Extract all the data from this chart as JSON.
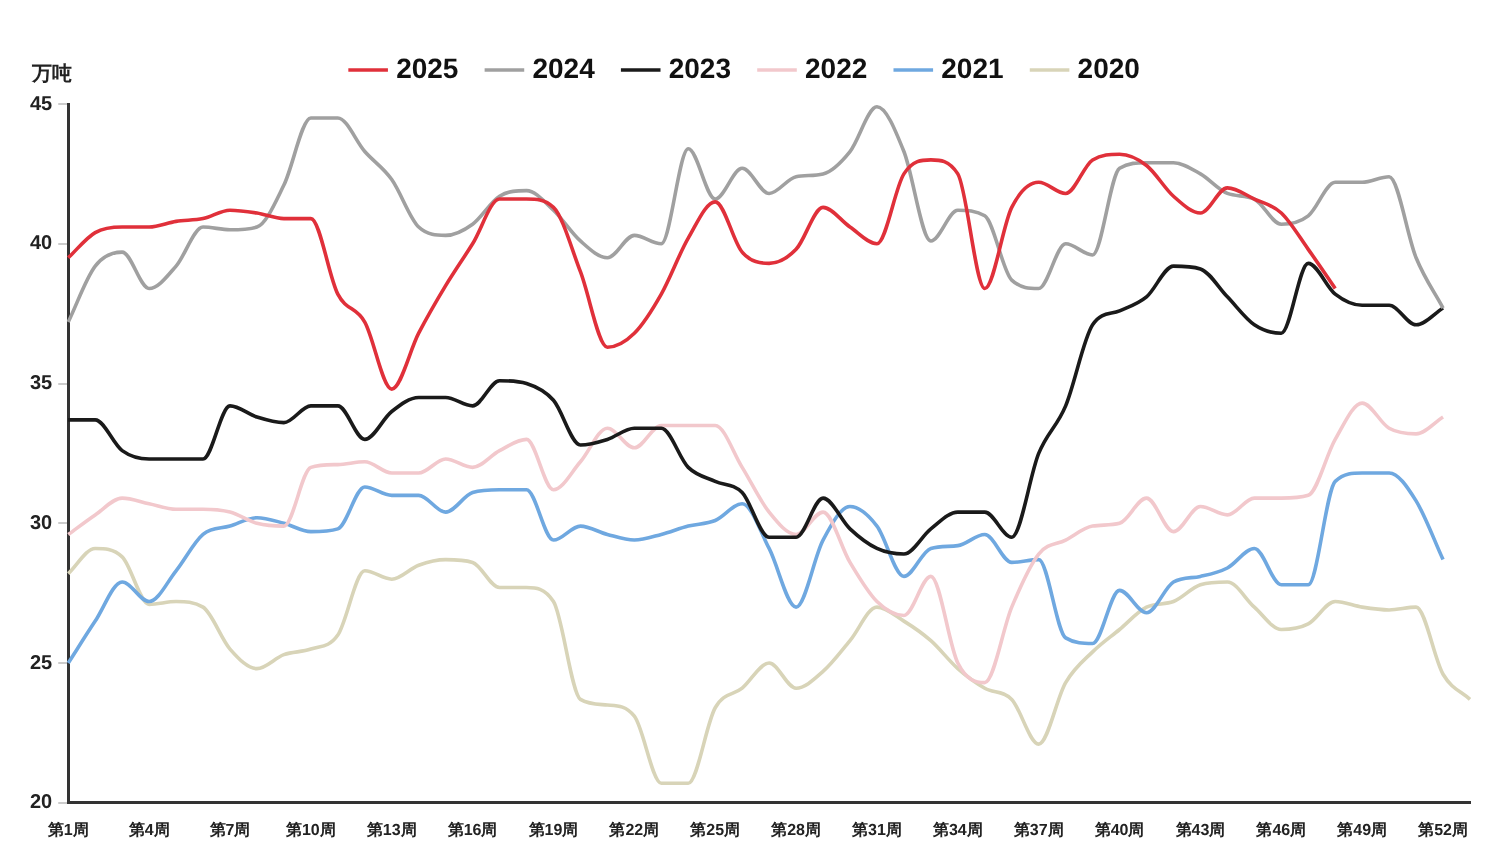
{
  "chart_data": {
    "type": "line",
    "ylabel": "万吨",
    "categories": [
      "第1周",
      null,
      null,
      "第4周",
      null,
      null,
      "第7周",
      null,
      null,
      "第10周",
      null,
      null,
      "第13周",
      null,
      null,
      "第16周",
      null,
      null,
      "第19周",
      null,
      null,
      "第22周",
      null,
      null,
      "第25周",
      null,
      null,
      "第28周",
      null,
      null,
      "第31周",
      null,
      null,
      "第34周",
      null,
      null,
      "第37周",
      null,
      null,
      "第40周",
      null,
      null,
      "第43周",
      null,
      null,
      "第46周",
      null,
      null,
      "第49周",
      null,
      null,
      "第52周",
      null
    ],
    "series": [
      {
        "name": "2025",
        "color": "#e0303a",
        "values": [
          39.5,
          40.4,
          40.6,
          40.6,
          40.8,
          40.9,
          41.2,
          41.1,
          40.9,
          40.9,
          38.2,
          37.2,
          34.8,
          36.8,
          38.5,
          40.0,
          41.6,
          41.6,
          41.3,
          39.0,
          36.3,
          36.8,
          38.2,
          40.2,
          41.5,
          39.7,
          39.3,
          39.8,
          41.3,
          40.6,
          40.0,
          42.5,
          43.0,
          42.5,
          38.4,
          41.3,
          42.2,
          41.8,
          43.0,
          43.2,
          42.8,
          41.7,
          41.1,
          42.0,
          41.6,
          41.1,
          39.8,
          38.4,
          null,
          null,
          null,
          null,
          null
        ]
      },
      {
        "name": "2024",
        "color": "#a0a0a0",
        "values": [
          37.2,
          39.2,
          39.7,
          38.4,
          39.2,
          40.6,
          40.5,
          40.6,
          42.1,
          44.5,
          44.5,
          43.3,
          42.3,
          40.6,
          40.3,
          40.7,
          41.7,
          41.9,
          41.2,
          40.1,
          39.5,
          40.3,
          40.0,
          43.4,
          41.6,
          42.7,
          41.8,
          42.4,
          42.5,
          43.3,
          44.9,
          43.3,
          40.1,
          41.2,
          41.0,
          38.7,
          38.4,
          40.0,
          39.6,
          42.7,
          42.9,
          42.9,
          42.5,
          41.8,
          41.6,
          40.7,
          41.0,
          42.2,
          42.2,
          42.4,
          39.5,
          37.7,
          null
        ]
      },
      {
        "name": "2023",
        "color": "#1a1a1a",
        "values": [
          33.7,
          33.7,
          32.6,
          32.3,
          32.3,
          32.3,
          34.2,
          33.8,
          33.6,
          34.2,
          34.2,
          33.0,
          34.0,
          34.5,
          34.5,
          34.2,
          35.1,
          35.0,
          34.4,
          32.8,
          33.0,
          33.4,
          33.4,
          32.0,
          31.5,
          31.1,
          29.5,
          29.5,
          30.9,
          29.8,
          29.1,
          28.9,
          29.8,
          30.4,
          30.4,
          29.5,
          32.5,
          34.2,
          37.1,
          37.6,
          38.1,
          39.2,
          39.1,
          38.1,
          37.1,
          36.8,
          39.3,
          38.2,
          37.8,
          37.8,
          37.1,
          37.7,
          null
        ]
      },
      {
        "name": "2022",
        "color": "#f2c8cc",
        "values": [
          29.6,
          30.3,
          30.9,
          30.7,
          30.5,
          30.5,
          30.4,
          30.0,
          29.9,
          32.0,
          32.1,
          32.2,
          31.8,
          31.8,
          32.3,
          32.0,
          32.6,
          33.0,
          31.2,
          32.2,
          33.4,
          32.7,
          33.5,
          33.5,
          33.5,
          32.0,
          30.4,
          29.6,
          30.4,
          28.6,
          27.2,
          26.7,
          28.1,
          25.0,
          24.3,
          27.0,
          28.9,
          29.4,
          29.9,
          30.0,
          30.9,
          29.7,
          30.6,
          30.3,
          30.9,
          30.9,
          31.0,
          33.0,
          34.3,
          33.4,
          33.2,
          33.8,
          null
        ]
      },
      {
        "name": "2021",
        "color": "#6fa8e0",
        "values": [
          25.0,
          26.5,
          27.9,
          27.2,
          28.3,
          29.6,
          29.9,
          30.2,
          30.0,
          29.7,
          29.8,
          31.3,
          31.0,
          31.0,
          30.4,
          31.1,
          31.2,
          31.2,
          29.4,
          29.9,
          29.6,
          29.4,
          29.6,
          29.9,
          30.1,
          30.7,
          29.1,
          27.0,
          29.4,
          30.6,
          29.9,
          28.1,
          29.1,
          29.2,
          29.6,
          28.6,
          28.7,
          25.9,
          25.7,
          27.6,
          26.8,
          27.9,
          28.1,
          28.4,
          29.1,
          27.8,
          27.8,
          31.5,
          31.8,
          31.8,
          30.8,
          28.7,
          null
        ]
      },
      {
        "name": "2020",
        "color": "#d8d4b8",
        "values": [
          28.2,
          29.1,
          28.8,
          27.1,
          27.2,
          27.0,
          25.5,
          24.8,
          25.3,
          25.5,
          26.0,
          28.3,
          28.0,
          28.5,
          28.7,
          28.6,
          27.7,
          27.7,
          27.2,
          23.7,
          23.5,
          23.1,
          20.7,
          20.7,
          23.4,
          24.1,
          25.0,
          24.1,
          24.7,
          25.8,
          27.0,
          26.5,
          25.8,
          24.8,
          24.1,
          23.7,
          22.1,
          24.3,
          25.4,
          26.2,
          27.0,
          27.2,
          27.8,
          27.9,
          27.0,
          26.2,
          26.4,
          27.2,
          27.0,
          26.9,
          27.0,
          24.6,
          23.7
        ]
      }
    ],
    "ylim": [
      20,
      45
    ],
    "yticks": [
      20,
      25,
      30,
      35,
      40,
      45
    ],
    "grid": false,
    "legend": "top",
    "marker": "none",
    "line_style": "solid"
  }
}
